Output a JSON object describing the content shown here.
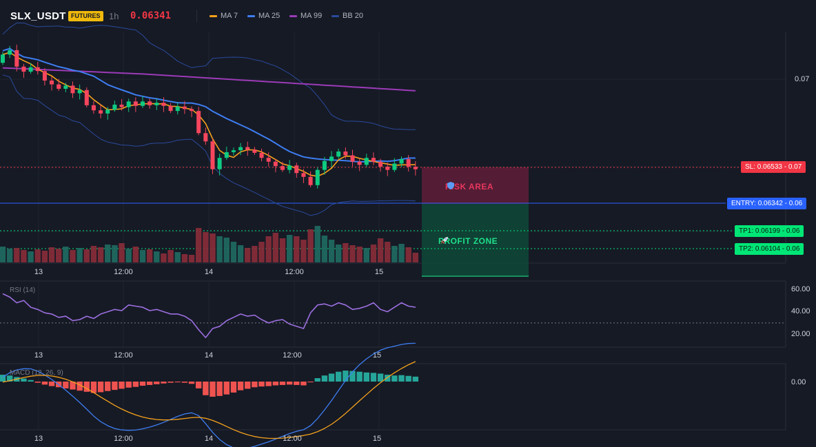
{
  "header": {
    "symbol": "SLX_USDT",
    "badge": "FUTURES",
    "timeframe": "1h",
    "price": "0.06341"
  },
  "legend": [
    {
      "label": "MA 7",
      "color": "#f7a21b"
    },
    {
      "label": "MA 25",
      "color": "#3d7ef2"
    },
    {
      "label": "MA 99",
      "color": "#9c3bb8"
    },
    {
      "label": "BB 20",
      "color": "#2a4a9b"
    }
  ],
  "colors": {
    "up": "#26a69a",
    "up_bright": "#0ecb81",
    "down": "#f6465d",
    "background": "#161a25",
    "grid": "#1f2430"
  },
  "main_chart": {
    "price_axis": [
      "0.07"
    ],
    "time_axis": [
      "13",
      "12:00",
      "14",
      "12:00",
      "15"
    ],
    "levels": {
      "sl": "SL: 0.06533 - 0.07",
      "entry": "ENTRY: 0.06342 - 0.06",
      "tp1": "TP1: 0.06199 - 0.06",
      "tp2": "TP2: 0.06104 - 0.06"
    },
    "zones": {
      "risk": "RISK AREA",
      "profit": "PROFIT ZONE"
    },
    "zone_icons": {
      "risk": "shield-icon",
      "profit": "rocket-icon"
    }
  },
  "rsi": {
    "title": "RSI (14)",
    "axis": [
      "60.00",
      "40.00",
      "20.00"
    ],
    "time_axis": [
      "13",
      "12:00",
      "14",
      "12:00",
      "15"
    ],
    "oversold_line": 30,
    "values": [
      56,
      53,
      48,
      50,
      44,
      42,
      39,
      38,
      35,
      36,
      32,
      33,
      36,
      34,
      38,
      40,
      42,
      41,
      46,
      45,
      44,
      41,
      42,
      40,
      38,
      38,
      36,
      32,
      24,
      17,
      25,
      27,
      32,
      35,
      38,
      36,
      37,
      33,
      30,
      32,
      33,
      29,
      27,
      25,
      39,
      46,
      47,
      45,
      48,
      46,
      42,
      43,
      45,
      48,
      42,
      40,
      44,
      48,
      45,
      44
    ]
  },
  "macd": {
    "title": "MACD (12, 26, 9)",
    "axis": [
      "0.00"
    ],
    "time_axis": [
      "13",
      "12:00",
      "14",
      "12:00",
      "15"
    ],
    "histogram": [
      1.8,
      1.6,
      1.2,
      0.8,
      0.4,
      -0.3,
      -0.8,
      -1.2,
      -1.5,
      -1.8,
      -2.1,
      -2.4,
      -2.7,
      -3.0,
      -2.8,
      -2.5,
      -2.2,
      -1.9,
      -1.6,
      -1.4,
      -1.1,
      -0.9,
      -0.7,
      -0.5,
      -0.3,
      -0.2,
      -0.3,
      -0.6,
      -1.8,
      -3.6,
      -4.0,
      -3.8,
      -3.4,
      -2.9,
      -2.3,
      -1.9,
      -1.5,
      -1.3,
      -1.2,
      -1.0,
      -0.9,
      -0.8,
      -0.9,
      -1.0,
      -0.2,
      0.9,
      1.6,
      2.1,
      2.6,
      2.9,
      2.8,
      2.6,
      2.4,
      2.3,
      2.1,
      1.8,
      1.6,
      1.7,
      1.5,
      1.3
    ]
  },
  "candles": [
    [
      9.0,
      10.3
    ],
    [
      10.3,
      11.0
    ],
    [
      11.0,
      8.4
    ],
    [
      8.4,
      7.6
    ],
    [
      7.6,
      8.3
    ],
    [
      8.3,
      7.7
    ],
    [
      7.7,
      6.2
    ],
    [
      6.2,
      5.6
    ],
    [
      5.6,
      4.9
    ],
    [
      4.9,
      5.4
    ],
    [
      5.4,
      4.2
    ],
    [
      4.2,
      4.7
    ],
    [
      4.7,
      2.3
    ],
    [
      2.3,
      1.5
    ],
    [
      1.5,
      1.0
    ],
    [
      1.0,
      1.6
    ],
    [
      1.6,
      2.4
    ],
    [
      2.4,
      2.0
    ],
    [
      2.0,
      2.9
    ],
    [
      2.9,
      2.2
    ],
    [
      2.2,
      2.9
    ],
    [
      2.9,
      2.3
    ],
    [
      2.3,
      2.7
    ],
    [
      2.7,
      2.2
    ],
    [
      2.2,
      1.4
    ],
    [
      1.4,
      2.1
    ],
    [
      2.1,
      1.7
    ],
    [
      1.7,
      1.4
    ],
    [
      1.4,
      -2.1
    ],
    [
      -2.1,
      -3.4
    ],
    [
      -3.4,
      -7.8
    ],
    [
      -7.8,
      -6.0
    ],
    [
      -6.0,
      -5.1
    ],
    [
      -5.1,
      -4.8
    ],
    [
      -4.8,
      -4.3
    ],
    [
      -4.3,
      -4.7
    ],
    [
      -4.7,
      -5.2
    ],
    [
      -5.2,
      -6.0
    ],
    [
      -6.0,
      -6.6
    ],
    [
      -6.6,
      -7.3
    ],
    [
      -7.3,
      -7.9
    ],
    [
      -7.9,
      -7.2
    ],
    [
      -7.2,
      -8.4
    ],
    [
      -8.4,
      -9.0
    ],
    [
      -9.0,
      -10.3
    ],
    [
      -10.3,
      -7.9
    ],
    [
      -7.9,
      -6.5
    ],
    [
      -6.5,
      -5.8
    ],
    [
      -5.8,
      -5.0
    ],
    [
      -5.0,
      -5.6
    ],
    [
      -5.6,
      -6.6
    ],
    [
      -6.6,
      -7.1
    ],
    [
      -7.1,
      -6.0
    ],
    [
      -6.0,
      -6.6
    ],
    [
      -6.6,
      -7.4
    ],
    [
      -7.4,
      -7.9
    ],
    [
      -7.9,
      -6.9
    ],
    [
      -6.9,
      -6.2
    ],
    [
      -6.2,
      -7.4
    ],
    [
      -7.4,
      -7.8
    ]
  ],
  "volumes": [
    2.3,
    2.0,
    2.1,
    1.8,
    1.6,
    1.9,
    1.7,
    2.2,
    2.0,
    2.3,
    1.8,
    2.1,
    1.9,
    2.4,
    2.2,
    2.6,
    2.5,
    2.8,
    2.0,
    2.3,
    1.8,
    1.9,
    1.6,
    1.3,
    1.8,
    1.5,
    1.2,
    1.1,
    5.0,
    4.4,
    4.2,
    3.8,
    3.6,
    3.0,
    2.5,
    2.1,
    2.4,
    3.0,
    3.8,
    4.3,
    3.5,
    4.0,
    3.8,
    3.3,
    4.8,
    5.3,
    3.9,
    3.3,
    2.6,
    2.8,
    2.5,
    2.3,
    2.1,
    2.6,
    3.5,
    3.0,
    2.4,
    2.7,
    2.2,
    1.4
  ]
}
